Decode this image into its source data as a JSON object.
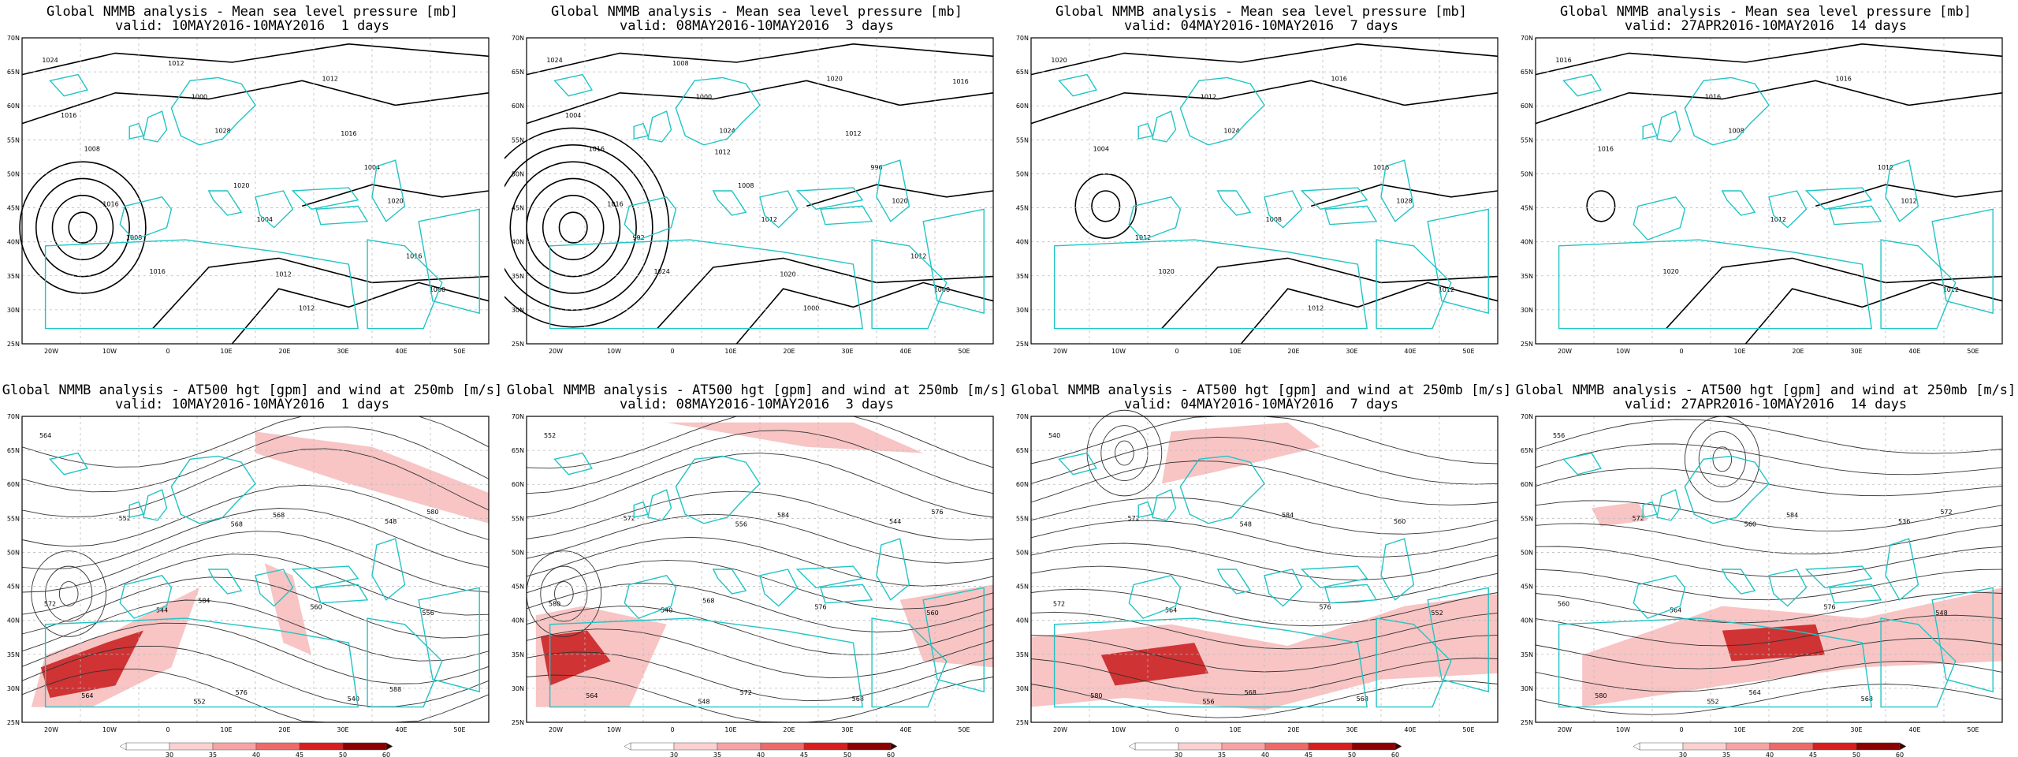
{
  "pressure_title": "Global NMMB analysis - Mean sea level pressure [mb]",
  "wind_title": "Global NMMB analysis - AT500 hgt [gpm] and wind at 250mb [m/s]",
  "periods": [
    "valid: 10MAY2016-10MAY2016  1 days",
    "valid: 08MAY2016-10MAY2016  3 days",
    "valid: 04MAY2016-10MAY2016  7 days",
    "valid: 27APR2016-10MAY2016  14 days"
  ],
  "lat_labels": [
    "70N",
    "65N",
    "60N",
    "55N",
    "50N",
    "45N",
    "40N",
    "35N",
    "30N",
    "25N"
  ],
  "lon_labels": [
    "20W",
    "10W",
    "0",
    "10E",
    "20E",
    "30E",
    "40E",
    "50E"
  ],
  "colorbar_ticks": [
    "30",
    "35",
    "40",
    "45",
    "50",
    "60"
  ],
  "colors": {
    "coast": "#22c4c4",
    "contour": "#000000",
    "grid": "#bbbbbb"
  },
  "pressure_labels": [
    [
      "1024",
      "1028",
      "1020",
      "1016",
      "1012",
      "1008",
      "1004",
      "1000",
      "1000",
      "1004",
      "1008",
      "1012",
      "1016",
      "1020",
      "1016",
      "1012",
      "1016",
      "1016",
      "1012"
    ],
    [
      "1024",
      "1024",
      "1020",
      "1024",
      "1020",
      "1016",
      "1012",
      "1008",
      "1000",
      "996",
      "992",
      "1000",
      "1004",
      "1008",
      "1012",
      "1008",
      "1012",
      "1016",
      "1020",
      "1016",
      "1012"
    ],
    [
      "1020",
      "1024",
      "1028",
      "1020",
      "1016",
      "1004",
      "1008",
      "1012",
      "1012",
      "1016",
      "1012",
      "1012"
    ],
    [
      "1016",
      "1008",
      "1012",
      "1020",
      "1016",
      "1016",
      "1012",
      "1012",
      "1016",
      "1012"
    ]
  ],
  "height_labels": [
    [
      "564",
      "568",
      "556",
      "552",
      "548",
      "544",
      "540",
      "552",
      "560",
      "564",
      "568",
      "572",
      "576",
      "580",
      "584",
      "588"
    ],
    [
      "552",
      "556",
      "560",
      "548",
      "544",
      "540",
      "568",
      "572",
      "576",
      "564",
      "584",
      "580",
      "572",
      "576",
      "568"
    ],
    [
      "540",
      "548",
      "552",
      "556",
      "560",
      "564",
      "568",
      "572",
      "576",
      "580",
      "584",
      "572",
      "568"
    ],
    [
      "556",
      "560",
      "548",
      "552",
      "536",
      "564",
      "568",
      "572",
      "576",
      "580",
      "584",
      "560",
      "564",
      "572"
    ]
  ]
}
